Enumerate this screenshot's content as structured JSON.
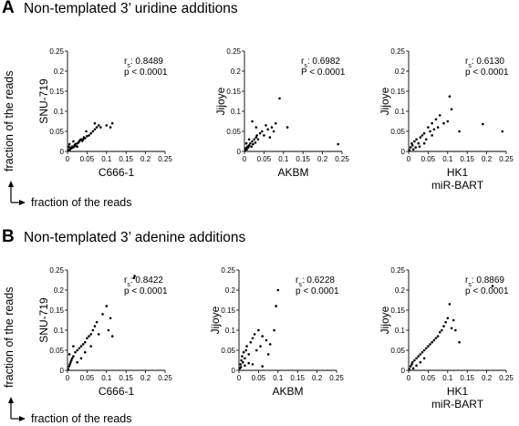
{
  "panels": [
    {
      "letter": "A",
      "title": "Non-templated 3’ uridine additions"
    },
    {
      "letter": "B",
      "title": "Non-templated 3’ adenine additions"
    }
  ],
  "axis_legend": {
    "label": "fraction of the reads"
  },
  "chart_data": [
    {
      "type": "scatter",
      "panel": "A",
      "xlabel": "C666-1",
      "ylabel": "SNU-719",
      "stat_label": "r",
      "stat_sub": "s",
      "stat_value": ": 0.8489",
      "p_value": "p < 0.0001",
      "xlim": [
        0,
        0.25
      ],
      "ylim": [
        0,
        0.25
      ],
      "ticks": [
        "0",
        "0.05",
        "0.1",
        "0.15",
        "0.2",
        "0.25"
      ],
      "points": [
        [
          0.002,
          0.003
        ],
        [
          0.004,
          0.005
        ],
        [
          0.006,
          0.004
        ],
        [
          0.008,
          0.009
        ],
        [
          0.01,
          0.008
        ],
        [
          0.012,
          0.012
        ],
        [
          0.015,
          0.01
        ],
        [
          0.018,
          0.015
        ],
        [
          0.02,
          0.018
        ],
        [
          0.022,
          0.013
        ],
        [
          0.025,
          0.02
        ],
        [
          0.028,
          0.022
        ],
        [
          0.03,
          0.025
        ],
        [
          0.032,
          0.028
        ],
        [
          0.035,
          0.03
        ],
        [
          0.038,
          0.026
        ],
        [
          0.04,
          0.03
        ],
        [
          0.042,
          0.035
        ],
        [
          0.045,
          0.033
        ],
        [
          0.05,
          0.038
        ],
        [
          0.055,
          0.04
        ],
        [
          0.06,
          0.045
        ],
        [
          0.065,
          0.05
        ],
        [
          0.07,
          0.055
        ],
        [
          0.075,
          0.06
        ],
        [
          0.08,
          0.065
        ],
        [
          0.085,
          0.06
        ],
        [
          0.07,
          0.07
        ],
        [
          0.1,
          0.065
        ],
        [
          0.11,
          0.06
        ],
        [
          0.115,
          0.07
        ],
        [
          0.003,
          0.012
        ],
        [
          0.005,
          0.018
        ],
        [
          0.015,
          0.025
        ],
        [
          0.025,
          0.012
        ],
        [
          0.048,
          0.05
        ]
      ]
    },
    {
      "type": "scatter",
      "panel": "A",
      "xlabel": "AKBM",
      "ylabel": "Jijoye",
      "stat_label": "r",
      "stat_sub": "s",
      "stat_value": ": 0.6982",
      "p_value": "P < 0.0001",
      "xlim": [
        0,
        0.25
      ],
      "ylim": [
        0,
        0.25
      ],
      "ticks": [
        "0",
        "0.05",
        "0.1",
        "0.15",
        "0.2",
        "0.25"
      ],
      "points": [
        [
          0.002,
          0.003
        ],
        [
          0.004,
          0.008
        ],
        [
          0.006,
          0.005
        ],
        [
          0.008,
          0.012
        ],
        [
          0.01,
          0.01
        ],
        [
          0.012,
          0.015
        ],
        [
          0.015,
          0.02
        ],
        [
          0.018,
          0.012
        ],
        [
          0.02,
          0.025
        ],
        [
          0.022,
          0.018
        ],
        [
          0.025,
          0.03
        ],
        [
          0.028,
          0.022
        ],
        [
          0.03,
          0.035
        ],
        [
          0.032,
          0.04
        ],
        [
          0.035,
          0.03
        ],
        [
          0.04,
          0.045
        ],
        [
          0.045,
          0.05
        ],
        [
          0.05,
          0.04
        ],
        [
          0.06,
          0.055
        ],
        [
          0.065,
          0.035
        ],
        [
          0.07,
          0.06
        ],
        [
          0.075,
          0.05
        ],
        [
          0.08,
          0.07
        ],
        [
          0.09,
          0.132
        ],
        [
          0.11,
          0.06
        ],
        [
          0.02,
          0.075
        ],
        [
          0.03,
          0.06
        ],
        [
          0.005,
          0.02
        ],
        [
          0.012,
          0.03
        ],
        [
          0.055,
          0.065
        ],
        [
          0.24,
          0.018
        ]
      ]
    },
    {
      "type": "scatter",
      "panel": "A",
      "xlabel": "HK1",
      "xlabel2": "miR-BART",
      "ylabel": "Jijoye",
      "stat_label": "r",
      "stat_sub": "s",
      "stat_value": ": 0.6130",
      "p_value": "p < 0.0001",
      "xlim": [
        0,
        0.25
      ],
      "ylim": [
        0,
        0.25
      ],
      "ticks": [
        "0",
        "0.05",
        "0.1",
        "0.15",
        "0.2",
        "0.25"
      ],
      "points": [
        [
          0.002,
          0.003
        ],
        [
          0.005,
          0.01
        ],
        [
          0.008,
          0.02
        ],
        [
          0.01,
          0.015
        ],
        [
          0.015,
          0.025
        ],
        [
          0.02,
          0.03
        ],
        [
          0.025,
          0.02
        ],
        [
          0.03,
          0.035
        ],
        [
          0.035,
          0.04
        ],
        [
          0.04,
          0.045
        ],
        [
          0.045,
          0.03
        ],
        [
          0.05,
          0.06
        ],
        [
          0.055,
          0.05
        ],
        [
          0.06,
          0.07
        ],
        [
          0.065,
          0.055
        ],
        [
          0.07,
          0.08
        ],
        [
          0.075,
          0.06
        ],
        [
          0.08,
          0.09
        ],
        [
          0.09,
          0.07
        ],
        [
          0.1,
          0.075
        ],
        [
          0.105,
          0.137
        ],
        [
          0.11,
          0.105
        ],
        [
          0.13,
          0.05
        ],
        [
          0.19,
          0.068
        ],
        [
          0.24,
          0.05
        ],
        [
          0.012,
          0.005
        ],
        [
          0.018,
          0.01
        ],
        [
          0.028,
          0.012
        ],
        [
          0.04,
          0.02
        ],
        [
          0.06,
          0.04
        ]
      ]
    },
    {
      "type": "scatter",
      "panel": "B",
      "xlabel": "C666-1",
      "ylabel": "SNU-719",
      "stat_label": "r",
      "stat_sub": "s",
      "stat_value": ": 0.8422",
      "p_value": "p < 0.0001",
      "xlim": [
        0,
        0.25
      ],
      "ylim": [
        0,
        0.25
      ],
      "ticks": [
        "0",
        "0.05",
        "0.1",
        "0.15",
        "0.2",
        "0.25"
      ],
      "points": [
        [
          0.002,
          0.003
        ],
        [
          0.004,
          0.01
        ],
        [
          0.006,
          0.015
        ],
        [
          0.008,
          0.02
        ],
        [
          0.01,
          0.025
        ],
        [
          0.012,
          0.03
        ],
        [
          0.015,
          0.035
        ],
        [
          0.02,
          0.045
        ],
        [
          0.025,
          0.05
        ],
        [
          0.03,
          0.055
        ],
        [
          0.035,
          0.06
        ],
        [
          0.04,
          0.065
        ],
        [
          0.045,
          0.07
        ],
        [
          0.05,
          0.08
        ],
        [
          0.055,
          0.085
        ],
        [
          0.06,
          0.09
        ],
        [
          0.065,
          0.1
        ],
        [
          0.07,
          0.11
        ],
        [
          0.075,
          0.12
        ],
        [
          0.08,
          0.09
        ],
        [
          0.09,
          0.14
        ],
        [
          0.1,
          0.16
        ],
        [
          0.105,
          0.1
        ],
        [
          0.11,
          0.13
        ],
        [
          0.115,
          0.085
        ],
        [
          0.17,
          0.23
        ],
        [
          0.172,
          0.235
        ],
        [
          0.005,
          0.04
        ],
        [
          0.015,
          0.06
        ],
        [
          0.025,
          0.02
        ],
        [
          0.035,
          0.03
        ],
        [
          0.045,
          0.045
        ],
        [
          0.06,
          0.06
        ]
      ]
    },
    {
      "type": "scatter",
      "panel": "B",
      "xlabel": "AKBM",
      "ylabel": "Jijoye",
      "stat_label": "r",
      "stat_sub": "s",
      "stat_value": ": 0.6228",
      "p_value": "p < 0.0001",
      "xlim": [
        0,
        0.25
      ],
      "ylim": [
        0,
        0.25
      ],
      "ticks": [
        "0",
        "0.05",
        "0.1",
        "0.15",
        "0.2",
        "0.25"
      ],
      "points": [
        [
          0.002,
          0.005
        ],
        [
          0.004,
          0.015
        ],
        [
          0.006,
          0.025
        ],
        [
          0.008,
          0.035
        ],
        [
          0.01,
          0.02
        ],
        [
          0.012,
          0.045
        ],
        [
          0.015,
          0.03
        ],
        [
          0.018,
          0.05
        ],
        [
          0.02,
          0.06
        ],
        [
          0.025,
          0.04
        ],
        [
          0.03,
          0.07
        ],
        [
          0.035,
          0.08
        ],
        [
          0.04,
          0.09
        ],
        [
          0.045,
          0.05
        ],
        [
          0.05,
          0.1
        ],
        [
          0.055,
          0.06
        ],
        [
          0.06,
          0.085
        ],
        [
          0.07,
          0.075
        ],
        [
          0.075,
          0.04
        ],
        [
          0.08,
          0.065
        ],
        [
          0.09,
          0.1
        ],
        [
          0.095,
          0.16
        ],
        [
          0.1,
          0.2
        ],
        [
          0.005,
          0.008
        ],
        [
          0.015,
          0.012
        ],
        [
          0.025,
          0.018
        ],
        [
          0.035,
          0.015
        ],
        [
          0.06,
          0.01
        ]
      ]
    },
    {
      "type": "scatter",
      "panel": "B",
      "xlabel": "HK1",
      "xlabel2": "miR-BART",
      "ylabel": "Jijoye",
      "stat_label": "r",
      "stat_sub": "s",
      "stat_value": ": 0.8869",
      "p_value": "p < 0.0001",
      "xlim": [
        0,
        0.25
      ],
      "ylim": [
        0,
        0.25
      ],
      "ticks": [
        "0",
        "0.05",
        "0.1",
        "0.15",
        "0.2",
        "0.25"
      ],
      "points": [
        [
          0.002,
          0.003
        ],
        [
          0.005,
          0.01
        ],
        [
          0.008,
          0.015
        ],
        [
          0.01,
          0.02
        ],
        [
          0.015,
          0.025
        ],
        [
          0.02,
          0.03
        ],
        [
          0.025,
          0.035
        ],
        [
          0.03,
          0.04
        ],
        [
          0.035,
          0.045
        ],
        [
          0.04,
          0.05
        ],
        [
          0.045,
          0.055
        ],
        [
          0.05,
          0.06
        ],
        [
          0.055,
          0.065
        ],
        [
          0.06,
          0.07
        ],
        [
          0.065,
          0.075
        ],
        [
          0.07,
          0.08
        ],
        [
          0.075,
          0.085
        ],
        [
          0.08,
          0.095
        ],
        [
          0.085,
          0.1
        ],
        [
          0.09,
          0.11
        ],
        [
          0.095,
          0.12
        ],
        [
          0.1,
          0.13
        ],
        [
          0.105,
          0.165
        ],
        [
          0.11,
          0.105
        ],
        [
          0.115,
          0.125
        ],
        [
          0.12,
          0.1
        ],
        [
          0.13,
          0.07
        ],
        [
          0.215,
          0.21
        ],
        [
          0.012,
          0.005
        ],
        [
          0.02,
          0.012
        ],
        [
          0.03,
          0.02
        ],
        [
          0.04,
          0.03
        ]
      ]
    }
  ]
}
